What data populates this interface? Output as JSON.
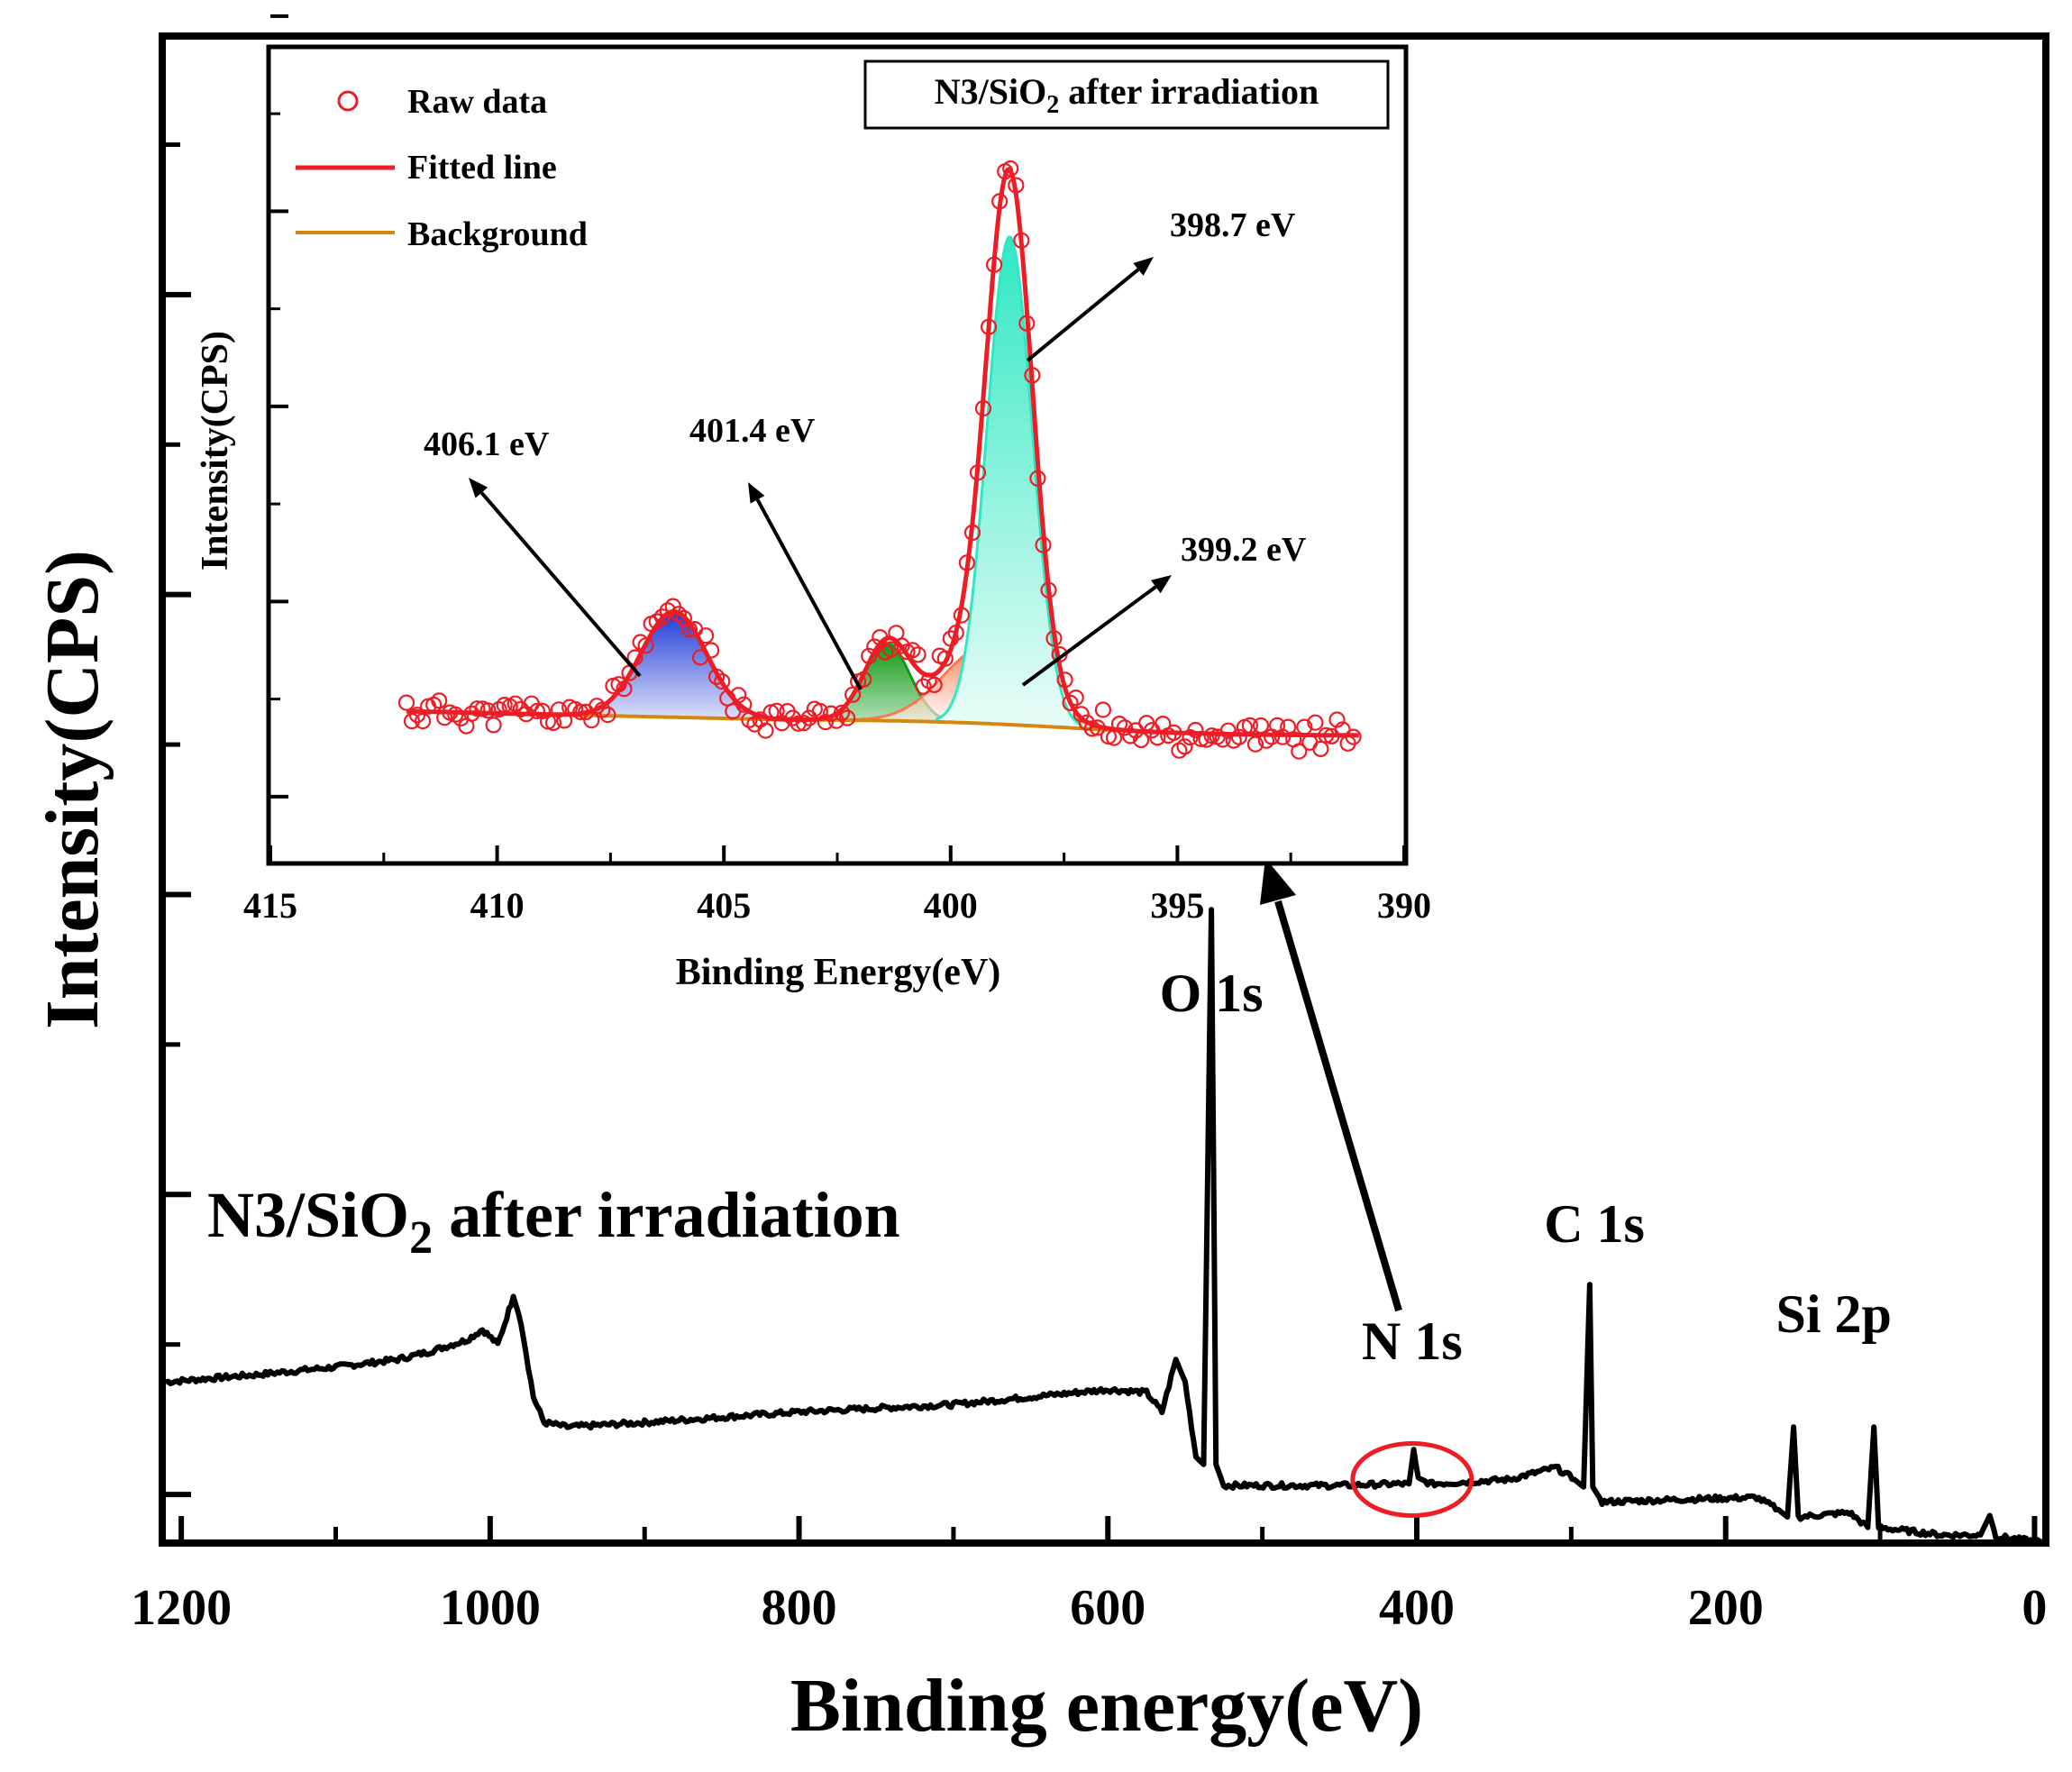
{
  "chart_data": [
    {
      "type": "line",
      "name": "XPS survey spectrum",
      "title": "N3/SiO2 after irradiation",
      "title_main": "N3/SiO",
      "title_sub": "2",
      "title_tail": " after irradiation",
      "xlabel": "Binding energy(eV)",
      "ylabel": "Intensity(CPS)",
      "xlim": [
        1210,
        -5
      ],
      "ylim": [
        0,
        10
      ],
      "x_ticks": [
        1200,
        1000,
        800,
        600,
        400,
        200,
        0
      ],
      "x_tick_labels": [
        "1200",
        "1000",
        "800",
        "600",
        "400",
        "200",
        "0"
      ],
      "x_minor_ticks": [
        1100,
        900,
        700,
        500,
        300,
        100
      ],
      "y_ticks": [
        0.3,
        2.3,
        4.3,
        6.3,
        8.3
      ],
      "y_minor_ticks": [
        1.3,
        3.3,
        5.3,
        7.3,
        9.3
      ],
      "series": [
        {
          "name": "N3/SiO2 after irradiation",
          "color": "#000000",
          "points": [
            [
              1210,
              1.05
            ],
            [
              1150,
              1.1
            ],
            [
              1100,
              1.15
            ],
            [
              1060,
              1.2
            ],
            [
              1040,
              1.25
            ],
            [
              1015,
              1.33
            ],
            [
              1005,
              1.4
            ],
            [
              995,
              1.3
            ],
            [
              985,
              1.62
            ],
            [
              980,
              1.45
            ],
            [
              972,
              0.95
            ],
            [
              965,
              0.78
            ],
            [
              950,
              0.75
            ],
            [
              900,
              0.78
            ],
            [
              800,
              0.85
            ],
            [
              700,
              0.9
            ],
            [
              600,
              1.0
            ],
            [
              575,
              0.98
            ],
            [
              565,
              0.85
            ],
            [
              556,
              1.2
            ],
            [
              550,
              1.05
            ],
            [
              543,
              0.55
            ],
            [
              538,
              0.5
            ],
            [
              533,
              4.2
            ],
            [
              530,
              0.5
            ],
            [
              525,
              0.36
            ],
            [
              450,
              0.36
            ],
            [
              415,
              0.37
            ],
            [
              405,
              0.37
            ],
            [
              402,
              0.6
            ],
            [
              399,
              0.4
            ],
            [
              390,
              0.37
            ],
            [
              340,
              0.4
            ],
            [
              310,
              0.48
            ],
            [
              298,
              0.4
            ],
            [
              292,
              0.35
            ],
            [
              288,
              1.7
            ],
            [
              286,
              0.35
            ],
            [
              280,
              0.25
            ],
            [
              220,
              0.27
            ],
            [
              180,
              0.28
            ],
            [
              166,
              0.2
            ],
            [
              160,
              0.15
            ],
            [
              156,
              0.75
            ],
            [
              153,
              0.15
            ],
            [
              120,
              0.18
            ],
            [
              108,
              0.08
            ],
            [
              104,
              0.75
            ],
            [
              101,
              0.08
            ],
            [
              60,
              0.03
            ],
            [
              35,
              0.03
            ],
            [
              29,
              0.16
            ],
            [
              25,
              0.02
            ],
            [
              10,
              0.0
            ],
            [
              -5,
              -0.02
            ]
          ]
        }
      ],
      "annotations": [
        {
          "text": "O 1s",
          "x": 533
        },
        {
          "text": "N 1s",
          "x": 403
        },
        {
          "text": "C 1s",
          "x": 285
        },
        {
          "text": "Si 2p",
          "x": 130
        }
      ],
      "highlight": {
        "shape": "ellipse",
        "x": 403,
        "color": "#ee1c24"
      }
    },
    {
      "type": "line",
      "name": "N 1s high-resolution inset",
      "title": "N3/SiO2 after irradiation",
      "title_main": "N3/SiO",
      "title_sub": "2",
      "title_tail": " after irradiation",
      "xlabel": "Binding Energy(eV)",
      "ylabel": "Intensity(CPS)",
      "xlim": [
        415,
        390
      ],
      "ylim": [
        0,
        10
      ],
      "x_ticks": [
        415,
        410,
        405,
        400,
        395,
        390
      ],
      "x_tick_labels": [
        "415",
        "410",
        "405",
        "400",
        "395",
        "390"
      ],
      "x_minor_ticks": [
        412.5,
        407.5,
        402.5,
        397.5,
        392.5
      ],
      "y_ticks": [
        0.8,
        3.2,
        5.6,
        8.0,
        10.4
      ],
      "y_minor_ticks": [
        2.0,
        4.4,
        6.8,
        9.2
      ],
      "legend": {
        "placement": "top-left",
        "entries": [
          {
            "label": "Raw data",
            "style": "circle",
            "color": "#ee1c24"
          },
          {
            "label": "Fitted line",
            "style": "line",
            "color": "#ee1c24"
          },
          {
            "label": "Background",
            "style": "line",
            "color": "#d4880f"
          }
        ]
      },
      "background": {
        "x_start": 412,
        "x_end": 391,
        "y_start": 1.85,
        "y_mid": 1.75,
        "x_mid": 404,
        "y_end": 1.55
      },
      "components": [
        {
          "center": 406.1,
          "height": 1.3,
          "sigma": 0.72,
          "color": "#1f3bd8",
          "label": "406.1 eV",
          "name": "peak-406-1"
        },
        {
          "center": 401.4,
          "height": 0.95,
          "sigma": 0.5,
          "color": "#0d9a14",
          "label": "401.4 eV",
          "name": "peak-401-4"
        },
        {
          "center": 399.2,
          "height": 0.95,
          "sigma": 0.95,
          "color": "#f97a50",
          "label": "399.2 eV",
          "name": "peak-399-2"
        },
        {
          "center": 398.7,
          "height": 6.0,
          "sigma": 0.5,
          "color": "#2fe8c3",
          "label": "398.7 eV",
          "name": "peak-398-7"
        }
      ],
      "raw_data": {
        "x_start": 412,
        "x_end": 391,
        "step": 0.12,
        "noise": 0.15
      }
    }
  ]
}
